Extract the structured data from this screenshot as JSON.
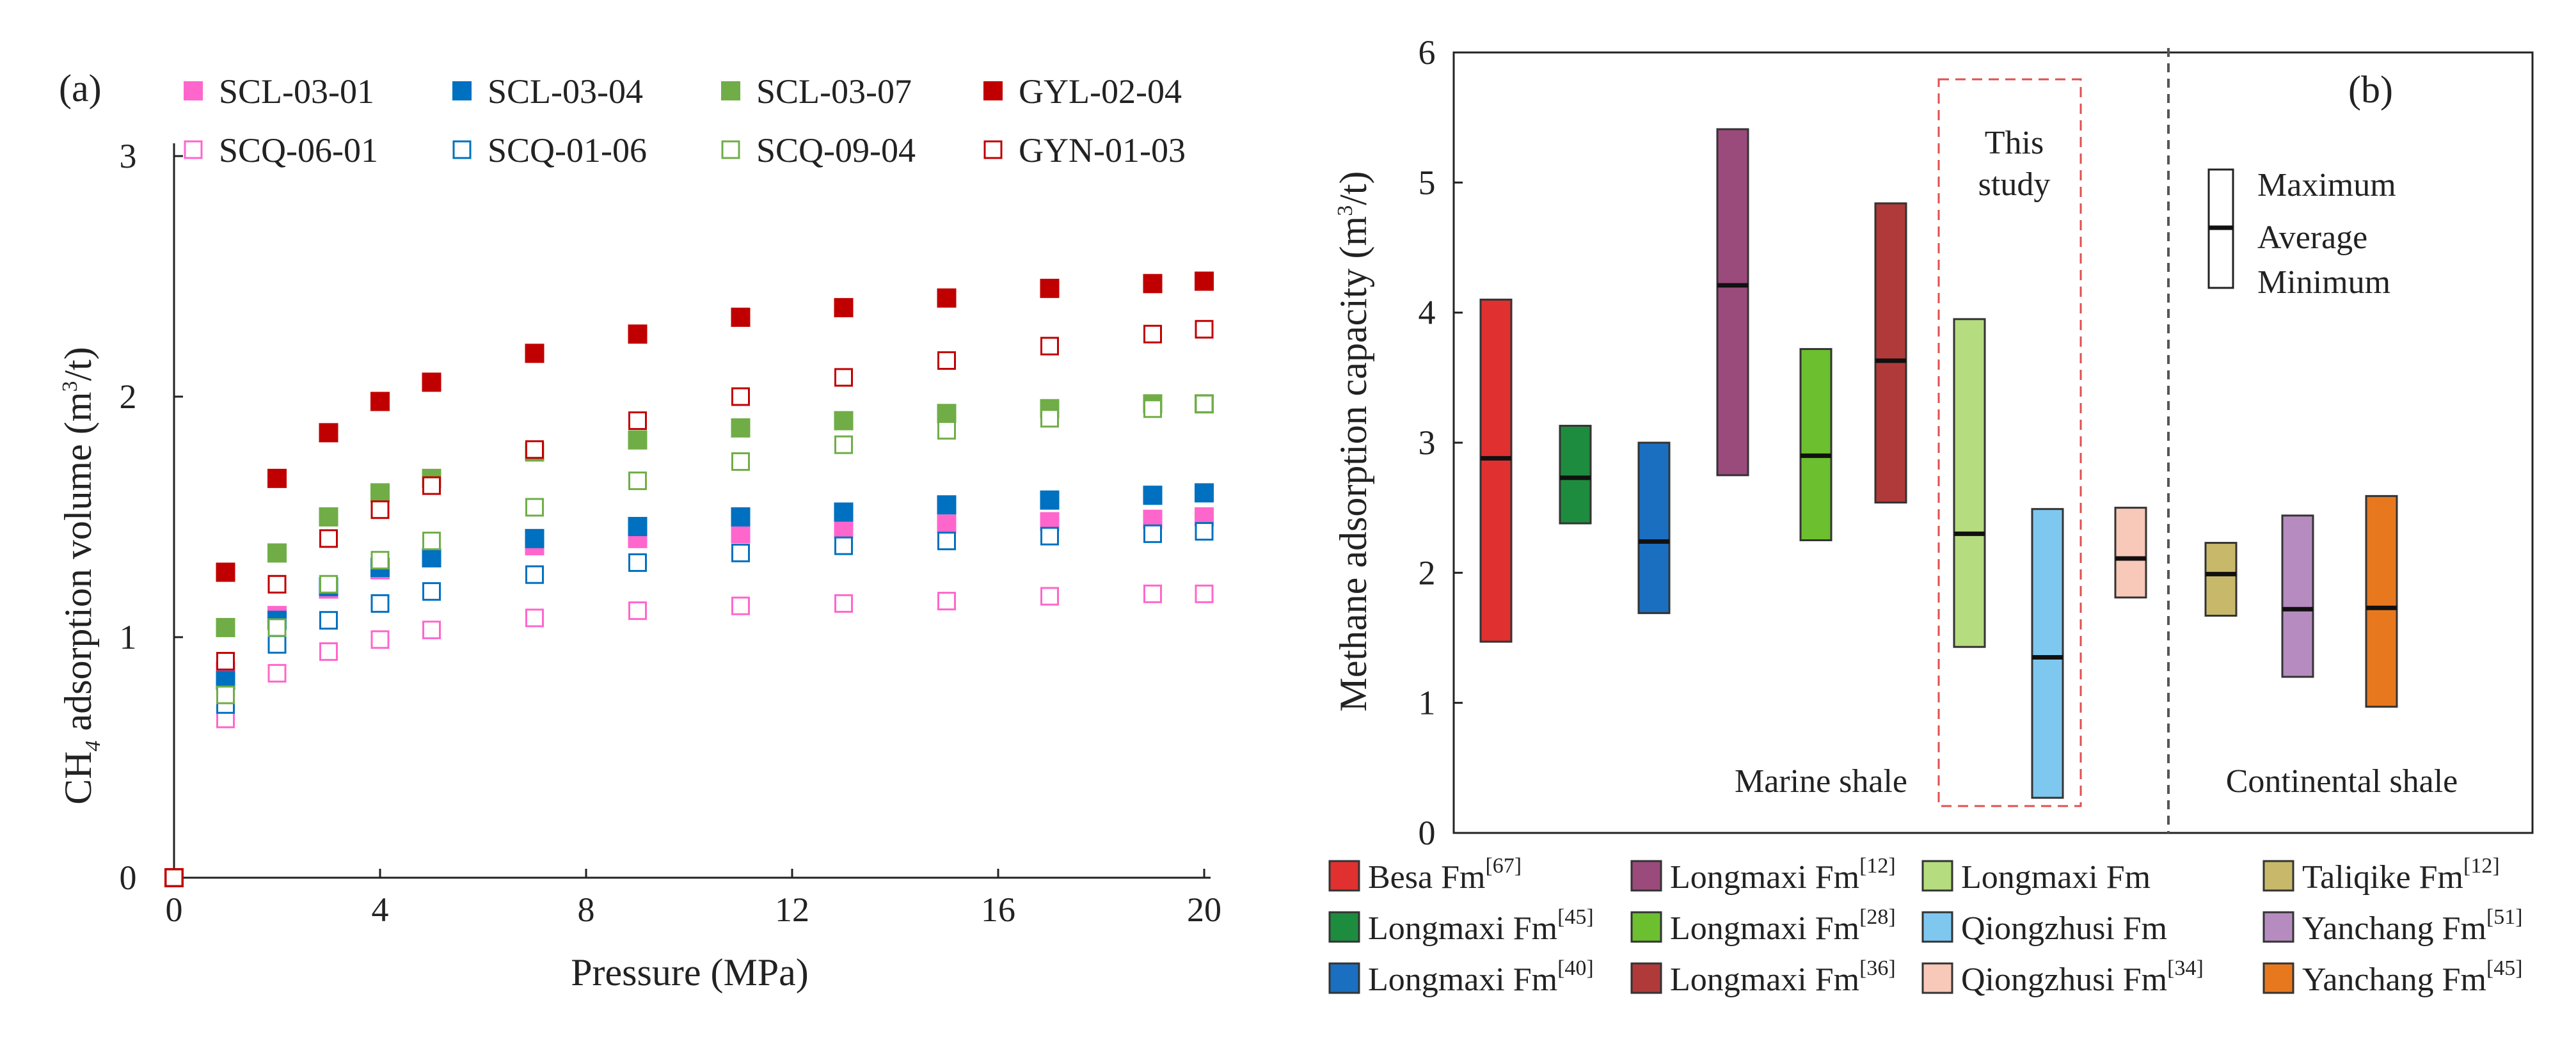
{
  "chart_data": [
    {
      "type": "scatter",
      "panel_label": "(a)",
      "xlabel": "Pressure (MPa)",
      "ylabel": {
        "pre": "CH",
        "sub": "4",
        "mid": " adsorption volume (m",
        "sup": "3",
        "post": "/t)"
      },
      "xlim": [
        0,
        20
      ],
      "ylim": [
        0,
        3
      ],
      "xticks": [
        "0",
        "4",
        "8",
        "12",
        "16",
        "20"
      ],
      "yticks": [
        "0",
        "1",
        "2",
        "3"
      ],
      "x": [
        0,
        1,
        2,
        3,
        4,
        5,
        7,
        9,
        11,
        13,
        15,
        17,
        19,
        20
      ],
      "series": [
        {
          "name": "SCL-03-01",
          "color": "#ff66cc",
          "filled": true,
          "values": [
            0,
            0.86,
            1.09,
            1.2,
            1.28,
            1.33,
            1.38,
            1.41,
            1.43,
            1.45,
            1.47,
            1.48,
            1.49,
            1.5
          ]
        },
        {
          "name": "SCL-03-04",
          "color": "#0070c0",
          "filled": true,
          "values": [
            0,
            0.82,
            1.07,
            1.21,
            1.29,
            1.33,
            1.41,
            1.46,
            1.5,
            1.52,
            1.55,
            1.57,
            1.59,
            1.6
          ]
        },
        {
          "name": "SCL-03-07",
          "color": "#70ad47",
          "filled": true,
          "values": [
            0,
            1.04,
            1.35,
            1.5,
            1.6,
            1.66,
            1.77,
            1.82,
            1.87,
            1.9,
            1.93,
            1.95,
            1.97,
            1.97
          ]
        },
        {
          "name": "GYL-02-04",
          "color": "#c00000",
          "filled": true,
          "values": [
            0,
            1.27,
            1.66,
            1.85,
            1.98,
            2.06,
            2.18,
            2.26,
            2.33,
            2.37,
            2.41,
            2.45,
            2.47,
            2.48
          ]
        },
        {
          "name": "SCQ-06-01",
          "color": "#ff66cc",
          "filled": false,
          "values": [
            0,
            0.66,
            0.85,
            0.94,
            0.99,
            1.03,
            1.08,
            1.11,
            1.13,
            1.14,
            1.15,
            1.17,
            1.18,
            1.18
          ]
        },
        {
          "name": "SCQ-01-06",
          "color": "#0070c0",
          "filled": false,
          "values": [
            0,
            0.72,
            0.97,
            1.07,
            1.14,
            1.19,
            1.26,
            1.31,
            1.35,
            1.38,
            1.4,
            1.42,
            1.43,
            1.44
          ]
        },
        {
          "name": "SCQ-09-04",
          "color": "#70ad47",
          "filled": false,
          "values": [
            0,
            0.76,
            1.04,
            1.22,
            1.32,
            1.4,
            1.54,
            1.65,
            1.73,
            1.8,
            1.86,
            1.91,
            1.95,
            1.97
          ]
        },
        {
          "name": "GYN-01-03",
          "color": "#c00000",
          "filled": false,
          "values": [
            0,
            0.9,
            1.22,
            1.41,
            1.53,
            1.63,
            1.78,
            1.9,
            2.0,
            2.08,
            2.15,
            2.21,
            2.26,
            2.28
          ]
        }
      ]
    },
    {
      "type": "range_bar",
      "panel_label": "(b)",
      "ylabel": {
        "pre": "Methane adsorption capacity (m",
        "sup": "3",
        "post": "/t)"
      },
      "ylim": [
        0,
        6
      ],
      "yticks": [
        "0",
        "1",
        "2",
        "3",
        "4",
        "5",
        "6"
      ],
      "key": {
        "max": "Maximum",
        "avg": "Average",
        "min": "Minimum"
      },
      "annotations": {
        "marine": "Marine shale",
        "continental": "Continental shale",
        "study_line1": "This",
        "study_line2": "study"
      },
      "bars": [
        {
          "name": "Besa Fm",
          "ref": "[67]",
          "color": "#e03030",
          "min": 1.47,
          "avg": 2.88,
          "max": 4.1
        },
        {
          "name": "Longmaxi Fm",
          "ref": "[45]",
          "color": "#1e8c3e",
          "min": 2.38,
          "avg": 2.73,
          "max": 3.13
        },
        {
          "name": "Longmaxi Fm",
          "ref": "[40]",
          "color": "#1a6fc0",
          "min": 1.69,
          "avg": 2.24,
          "max": 3.0
        },
        {
          "name": "Longmaxi Fm",
          "ref": "[12]",
          "color": "#9b4a7c",
          "min": 2.75,
          "avg": 4.21,
          "max": 5.41
        },
        {
          "name": "Longmaxi Fm",
          "ref": "[28]",
          "color": "#6cbf2e",
          "min": 2.25,
          "avg": 2.9,
          "max": 3.72
        },
        {
          "name": "Longmaxi Fm",
          "ref": "[36]",
          "color": "#b03a3a",
          "min": 2.54,
          "avg": 3.63,
          "max": 4.84
        },
        {
          "name": "Longmaxi Fm",
          "ref": "",
          "color": "#b5dc7e",
          "min": 1.43,
          "avg": 2.3,
          "max": 3.95
        },
        {
          "name": "Qiongzhusi Fm",
          "ref": "",
          "color": "#7ec8f0",
          "min": 0.27,
          "avg": 1.35,
          "max": 2.49
        },
        {
          "name": "Qiongzhusi Fm",
          "ref": "[34]",
          "color": "#f8c8b8",
          "min": 1.81,
          "avg": 2.11,
          "max": 2.5
        },
        {
          "name": "Taliqike Fm",
          "ref": "[12]",
          "color": "#c8b96a",
          "min": 1.67,
          "avg": 1.99,
          "max": 2.23
        },
        {
          "name": "Yanchang Fm",
          "ref": "[51]",
          "color": "#b68cc0",
          "min": 1.2,
          "avg": 1.72,
          "max": 2.44
        },
        {
          "name": "Yanchang Fm",
          "ref": "[45]",
          "color": "#e8781e",
          "min": 0.97,
          "avg": 1.73,
          "max": 2.59
        }
      ],
      "legend_order": [
        0,
        3,
        6,
        9,
        1,
        4,
        7,
        10,
        2,
        5,
        8,
        11
      ]
    }
  ]
}
